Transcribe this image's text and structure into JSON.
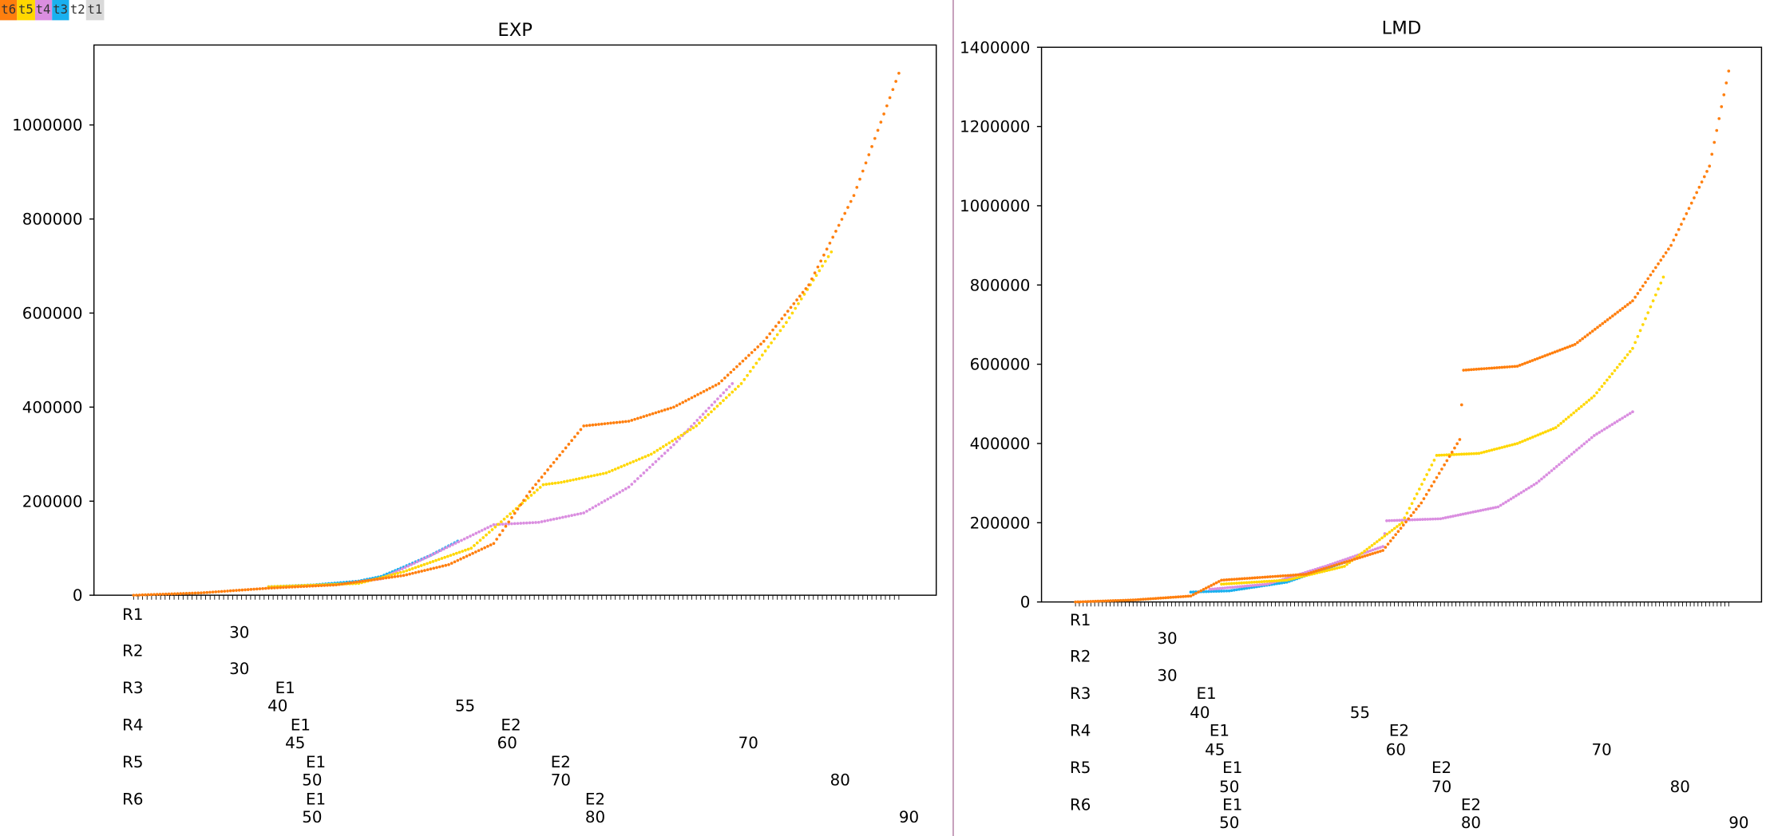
{
  "legend": [
    {
      "label": "t6",
      "color": "#ff7f0e"
    },
    {
      "label": "t5",
      "color": "#ffd700"
    },
    {
      "label": "t4",
      "color": "#da8ee0"
    },
    {
      "label": "t3",
      "color": "#1ab0ef"
    },
    {
      "label": "t2",
      "color": "#ffffff"
    },
    {
      "label": "t1",
      "color": "#d9d9d9"
    }
  ],
  "chart_data": [
    {
      "type": "scatter",
      "title": "EXP",
      "ylim": [
        0,
        1170000
      ],
      "yticks": [
        "0",
        "200000",
        "400000",
        "600000",
        "800000",
        "1000000"
      ],
      "yticks_values": [
        0,
        200000,
        400000,
        600000,
        800000,
        1000000
      ],
      "xlim": [
        0,
        170
      ],
      "grid": false,
      "series": [
        {
          "name": "t3",
          "color": "#1ab0ef",
          "points": [
            [
              30,
              18000
            ],
            [
              40,
              22000
            ],
            [
              50,
              30000
            ],
            [
              55,
              40000
            ],
            [
              60,
              60000
            ],
            [
              66,
              85000
            ],
            [
              72,
              115000
            ]
          ]
        },
        {
          "name": "t4",
          "color": "#da8ee0",
          "points": [
            [
              30,
              18000
            ],
            [
              45,
              22000
            ],
            [
              55,
              35000
            ],
            [
              65,
              80000
            ],
            [
              80,
              150000
            ],
            [
              90,
              155000
            ],
            [
              100,
              175000
            ],
            [
              110,
              230000
            ],
            [
              120,
              320000
            ],
            [
              133,
              450000
            ]
          ]
        },
        {
          "name": "t5",
          "color": "#ffd700",
          "points": [
            [
              30,
              18000
            ],
            [
              50,
              25000
            ],
            [
              60,
              50000
            ],
            [
              75,
              100000
            ],
            [
              91,
              235000
            ],
            [
              95,
              240000
            ],
            [
              105,
              260000
            ],
            [
              115,
              300000
            ],
            [
              125,
              360000
            ],
            [
              135,
              450000
            ],
            [
              145,
              580000
            ],
            [
              155,
              730000
            ]
          ]
        },
        {
          "name": "t6",
          "color": "#ff7f0e",
          "points": [
            [
              0,
              0
            ],
            [
              15,
              5000
            ],
            [
              30,
              15000
            ],
            [
              45,
              22000
            ],
            [
              60,
              42000
            ],
            [
              70,
              65000
            ],
            [
              80,
              110000
            ],
            [
              88,
              220000
            ],
            [
              100,
              360000
            ],
            [
              110,
              370000
            ],
            [
              120,
              400000
            ],
            [
              130,
              450000
            ],
            [
              140,
              540000
            ],
            [
              150,
              660000
            ],
            [
              160,
              850000
            ],
            [
              170,
              1110000
            ]
          ]
        }
      ],
      "row_labels": [
        {
          "row": "R1",
          "values": [
            "30"
          ],
          "events": []
        },
        {
          "row": "R2",
          "values": [
            "30"
          ],
          "events": []
        },
        {
          "row": "R3",
          "values": [
            "40",
            "55"
          ],
          "events": [
            "E1"
          ]
        },
        {
          "row": "R4",
          "values": [
            "45",
            "60",
            "70"
          ],
          "events": [
            "E1",
            "E2"
          ]
        },
        {
          "row": "R5",
          "values": [
            "50",
            "70",
            "80"
          ],
          "events": [
            "E1",
            "E2"
          ]
        },
        {
          "row": "R6",
          "values": [
            "50",
            "80",
            "90"
          ],
          "events": [
            "E1",
            "E2"
          ]
        }
      ]
    },
    {
      "type": "scatter",
      "title": "LMD",
      "ylim": [
        0,
        1400000
      ],
      "yticks": [
        "0",
        "200000",
        "400000",
        "600000",
        "800000",
        "1000000",
        "1200000",
        "1400000"
      ],
      "yticks_values": [
        0,
        200000,
        400000,
        600000,
        800000,
        1000000,
        1200000,
        1400000
      ],
      "xlim": [
        0,
        170
      ],
      "grid": false,
      "series": [
        {
          "name": "t3",
          "color": "#1ab0ef",
          "points": [
            [
              30,
              25000
            ],
            [
              40,
              28000
            ],
            [
              55,
              50000
            ],
            [
              70,
              100000
            ]
          ]
        },
        {
          "name": "t4",
          "color": "#da8ee0",
          "points": [
            [
              35,
              32000
            ],
            [
              50,
              45000
            ],
            [
              65,
              90000
            ],
            [
              80,
              140000
            ],
            [
              81,
              205000
            ],
            [
              95,
              210000
            ],
            [
              110,
              240000
            ],
            [
              120,
              300000
            ],
            [
              135,
              420000
            ],
            [
              145,
              480000
            ]
          ]
        },
        {
          "name": "t5",
          "color": "#ffd700",
          "points": [
            [
              38,
              45000
            ],
            [
              55,
              55000
            ],
            [
              70,
              90000
            ],
            [
              85,
              200000
            ],
            [
              94,
              370000
            ],
            [
              105,
              375000
            ],
            [
              115,
              400000
            ],
            [
              125,
              440000
            ],
            [
              135,
              520000
            ],
            [
              145,
              640000
            ],
            [
              153,
              820000
            ]
          ]
        },
        {
          "name": "t6",
          "color": "#ff7f0e",
          "points": [
            [
              0,
              0
            ],
            [
              15,
              5000
            ],
            [
              30,
              15000
            ],
            [
              38,
              55000
            ],
            [
              60,
              70000
            ],
            [
              80,
              130000
            ],
            [
              90,
              250000
            ],
            [
              100,
              410000
            ],
            [
              101,
              585000
            ],
            [
              115,
              595000
            ],
            [
              130,
              650000
            ],
            [
              145,
              760000
            ],
            [
              155,
              900000
            ],
            [
              165,
              1100000
            ],
            [
              170,
              1340000
            ]
          ]
        }
      ],
      "row_labels": [
        {
          "row": "R1",
          "values": [
            "30"
          ],
          "events": []
        },
        {
          "row": "R2",
          "values": [
            "30"
          ],
          "events": []
        },
        {
          "row": "R3",
          "values": [
            "40",
            "55"
          ],
          "events": [
            "E1"
          ]
        },
        {
          "row": "R4",
          "values": [
            "45",
            "60",
            "70"
          ],
          "events": [
            "E1",
            "E2"
          ]
        },
        {
          "row": "R5",
          "values": [
            "50",
            "70",
            "80"
          ],
          "events": [
            "E1",
            "E2"
          ]
        },
        {
          "row": "R6",
          "values": [
            "50",
            "80",
            "90"
          ],
          "events": [
            "E1",
            "E2"
          ]
        }
      ]
    }
  ]
}
